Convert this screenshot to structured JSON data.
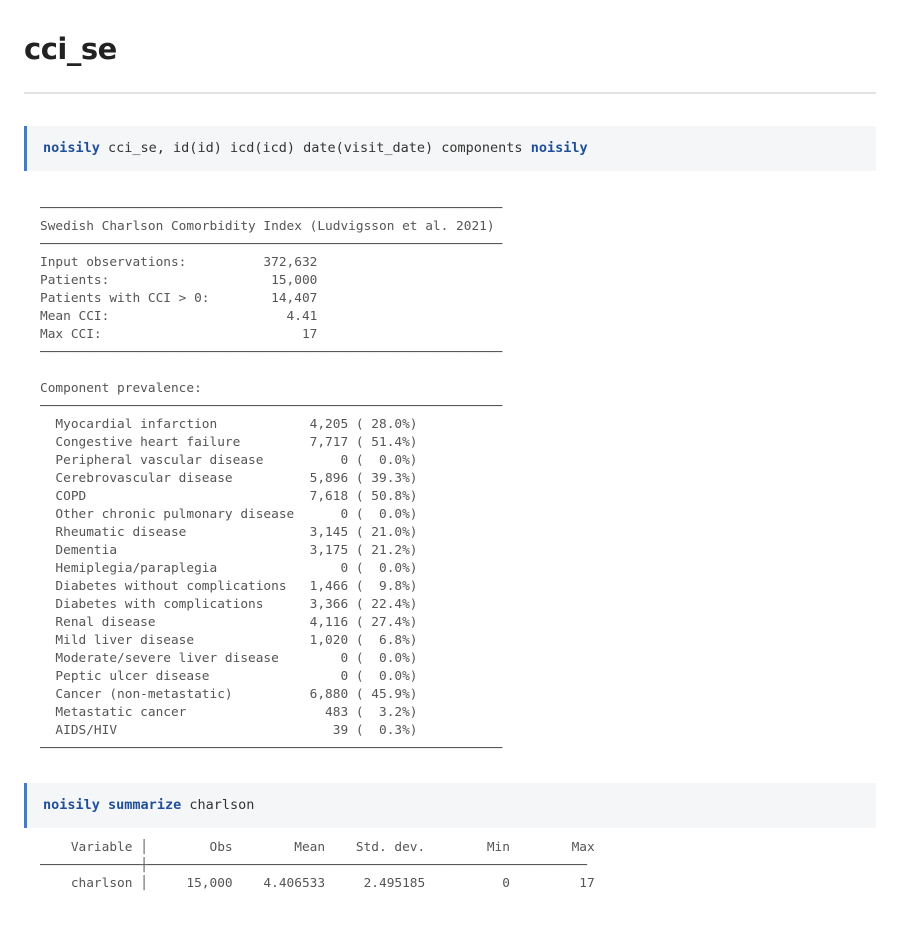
{
  "page": {
    "title": "cci_se"
  },
  "cmd1": {
    "kw1": "noisily",
    "middle": " cci_se, id(id) icd(icd) date(visit_date) components ",
    "kw2": "noisily"
  },
  "output1": {
    "header": "Swedish Charlson Comorbidity Index (Ludvigsson et al. 2021)",
    "stats": [
      {
        "label": "Input observations:",
        "value": "372,632"
      },
      {
        "label": "Patients:",
        "value": "15,000"
      },
      {
        "label": "Patients with CCI > 0:",
        "value": "14,407"
      },
      {
        "label": "Mean CCI:",
        "value": "4.41"
      },
      {
        "label": "Max CCI:",
        "value": "17"
      }
    ],
    "prevalence_header": "Component prevalence:",
    "components": [
      {
        "name": "Myocardial infarction",
        "count": "4,205",
        "pct": "28.0%"
      },
      {
        "name": "Congestive heart failure",
        "count": "7,717",
        "pct": "51.4%"
      },
      {
        "name": "Peripheral vascular disease",
        "count": "0",
        "pct": "0.0%"
      },
      {
        "name": "Cerebrovascular disease",
        "count": "5,896",
        "pct": "39.3%"
      },
      {
        "name": "COPD",
        "count": "7,618",
        "pct": "50.8%"
      },
      {
        "name": "Other chronic pulmonary disease",
        "count": "0",
        "pct": "0.0%"
      },
      {
        "name": "Rheumatic disease",
        "count": "3,145",
        "pct": "21.0%"
      },
      {
        "name": "Dementia",
        "count": "3,175",
        "pct": "21.2%"
      },
      {
        "name": "Hemiplegia/paraplegia",
        "count": "0",
        "pct": "0.0%"
      },
      {
        "name": "Diabetes without complications",
        "count": "1,466",
        "pct": "9.8%"
      },
      {
        "name": "Diabetes with complications",
        "count": "3,366",
        "pct": "22.4%"
      },
      {
        "name": "Renal disease",
        "count": "4,116",
        "pct": "27.4%"
      },
      {
        "name": "Mild liver disease",
        "count": "1,020",
        "pct": "6.8%"
      },
      {
        "name": "Moderate/severe liver disease",
        "count": "0",
        "pct": "0.0%"
      },
      {
        "name": "Peptic ulcer disease",
        "count": "0",
        "pct": "0.0%"
      },
      {
        "name": "Cancer (non-metastatic)",
        "count": "6,880",
        "pct": "45.9%"
      },
      {
        "name": "Metastatic cancer",
        "count": "483",
        "pct": "3.2%"
      },
      {
        "name": "AIDS/HIV",
        "count": "39",
        "pct": "0.3%"
      }
    ]
  },
  "cmd2": {
    "kw1": "noisily",
    "kw2": "summarize",
    "rest": " charlson"
  },
  "output2": {
    "headers": [
      "Variable",
      "Obs",
      "Mean",
      "Std. dev.",
      "Min",
      "Max"
    ],
    "row": [
      "charlson",
      "15,000",
      "4.406533",
      "2.495185",
      "0",
      "17"
    ]
  }
}
